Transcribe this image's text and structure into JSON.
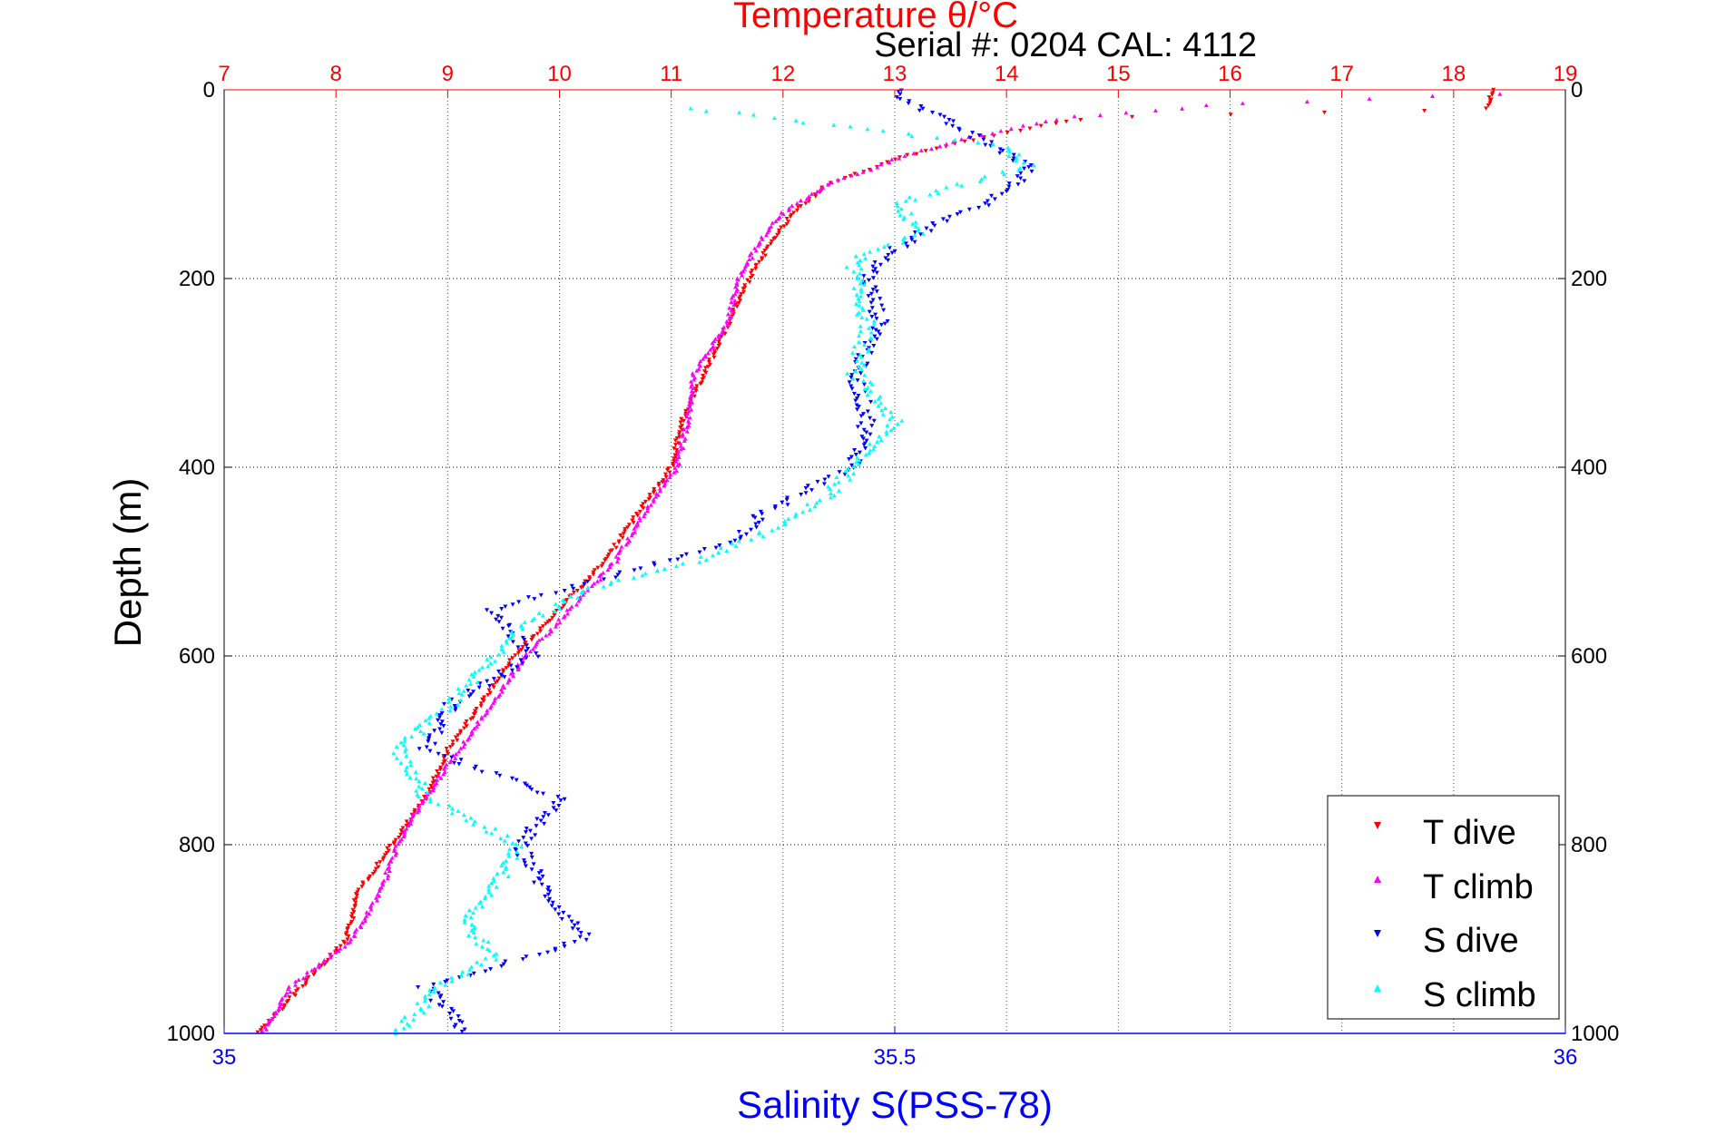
{
  "chart_data": {
    "type": "scatter",
    "title": "Temperature θ/°C",
    "subtitle": "Serial #: 0204  CAL: 4112",
    "ylabel": "Depth (m)",
    "xlabel_bottom": "Salinity S(PSS-78)",
    "x_top": {
      "label": "Temperature θ/°C",
      "lim": [
        7,
        19
      ],
      "ticks": [
        7,
        8,
        9,
        10,
        11,
        12,
        13,
        14,
        15,
        16,
        17,
        18,
        19
      ]
    },
    "x_bottom": {
      "label": "Salinity S(PSS-78)",
      "lim": [
        35,
        36
      ],
      "ticks": [
        35,
        35.5,
        36
      ],
      "tick_labels": [
        "35",
        "35.5",
        "36"
      ]
    },
    "y": {
      "lim": [
        0,
        1000
      ],
      "reversed": true,
      "ticks": [
        0,
        200,
        400,
        600,
        800,
        1000
      ]
    },
    "grid": true,
    "legend": {
      "position": "bottom-right",
      "entries": [
        "T dive",
        "T climb",
        "S dive",
        "S climb"
      ]
    },
    "colors": {
      "t_dive": "#ff0000",
      "t_climb": "#ff00ff",
      "s_dive": "#0000ff",
      "s_climb": "#00ffff",
      "temp_axis": "#ff0000",
      "sal_axis": "#0000ff"
    },
    "series": [
      {
        "name": "T dive",
        "axis": "temperature",
        "marker": "triangle-down",
        "profile": [
          [
            0,
            18.35
          ],
          [
            20,
            18.3
          ],
          [
            30,
            14.7
          ],
          [
            50,
            13.8
          ],
          [
            70,
            13.1
          ],
          [
            100,
            12.4
          ],
          [
            130,
            12.1
          ],
          [
            160,
            11.9
          ],
          [
            200,
            11.7
          ],
          [
            250,
            11.5
          ],
          [
            300,
            11.3
          ],
          [
            350,
            11.1
          ],
          [
            400,
            11.0
          ],
          [
            450,
            10.7
          ],
          [
            500,
            10.4
          ],
          [
            550,
            10.0
          ],
          [
            600,
            9.6
          ],
          [
            650,
            9.3
          ],
          [
            700,
            9.0
          ],
          [
            750,
            8.8
          ],
          [
            800,
            8.5
          ],
          [
            850,
            8.2
          ],
          [
            900,
            8.1
          ],
          [
            950,
            7.7
          ],
          [
            1000,
            7.3
          ]
        ]
      },
      {
        "name": "T climb",
        "axis": "temperature",
        "marker": "triangle-up",
        "profile": [
          [
            5,
            18.4
          ],
          [
            15,
            16.0
          ],
          [
            30,
            14.5
          ],
          [
            50,
            13.7
          ],
          [
            70,
            13.1
          ],
          [
            100,
            12.4
          ],
          [
            130,
            12.0
          ],
          [
            160,
            11.8
          ],
          [
            200,
            11.6
          ],
          [
            250,
            11.5
          ],
          [
            300,
            11.2
          ],
          [
            350,
            11.15
          ],
          [
            400,
            11.05
          ],
          [
            450,
            10.75
          ],
          [
            500,
            10.5
          ],
          [
            550,
            10.1
          ],
          [
            600,
            9.7
          ],
          [
            650,
            9.4
          ],
          [
            700,
            9.1
          ],
          [
            750,
            8.8
          ],
          [
            800,
            8.55
          ],
          [
            850,
            8.4
          ],
          [
            900,
            8.15
          ],
          [
            950,
            7.6
          ],
          [
            1000,
            7.35
          ]
        ]
      },
      {
        "name": "S dive",
        "axis": "salinity",
        "marker": "triangle-down",
        "profile": [
          [
            0,
            35.5
          ],
          [
            20,
            35.52
          ],
          [
            50,
            35.56
          ],
          [
            80,
            35.6
          ],
          [
            100,
            35.59
          ],
          [
            120,
            35.57
          ],
          [
            150,
            35.52
          ],
          [
            180,
            35.49
          ],
          [
            200,
            35.48
          ],
          [
            250,
            35.49
          ],
          [
            300,
            35.47
          ],
          [
            350,
            35.48
          ],
          [
            400,
            35.47
          ],
          [
            420,
            35.44
          ],
          [
            450,
            35.4
          ],
          [
            480,
            35.38
          ],
          [
            500,
            35.33
          ],
          [
            550,
            35.2
          ],
          [
            600,
            35.23
          ],
          [
            650,
            35.17
          ],
          [
            700,
            35.15
          ],
          [
            750,
            35.25
          ],
          [
            800,
            35.22
          ],
          [
            850,
            35.24
          ],
          [
            900,
            35.27
          ],
          [
            950,
            35.15
          ],
          [
            1000,
            35.18
          ]
        ]
      },
      {
        "name": "S climb",
        "axis": "salinity",
        "marker": "triangle-up",
        "profile": [
          [
            20,
            35.35
          ],
          [
            40,
            35.47
          ],
          [
            60,
            35.58
          ],
          [
            80,
            35.6
          ],
          [
            100,
            35.55
          ],
          [
            120,
            35.5
          ],
          [
            150,
            35.52
          ],
          [
            180,
            35.47
          ],
          [
            200,
            35.47
          ],
          [
            250,
            35.48
          ],
          [
            300,
            35.47
          ],
          [
            350,
            35.5
          ],
          [
            400,
            35.47
          ],
          [
            430,
            35.45
          ],
          [
            460,
            35.42
          ],
          [
            500,
            35.35
          ],
          [
            530,
            35.27
          ],
          [
            570,
            35.22
          ],
          [
            600,
            35.2
          ],
          [
            650,
            35.17
          ],
          [
            700,
            35.13
          ],
          [
            750,
            35.15
          ],
          [
            800,
            35.22
          ],
          [
            850,
            35.2
          ],
          [
            880,
            35.18
          ],
          [
            920,
            35.2
          ],
          [
            950,
            35.16
          ],
          [
            1000,
            35.13
          ]
        ]
      }
    ]
  }
}
